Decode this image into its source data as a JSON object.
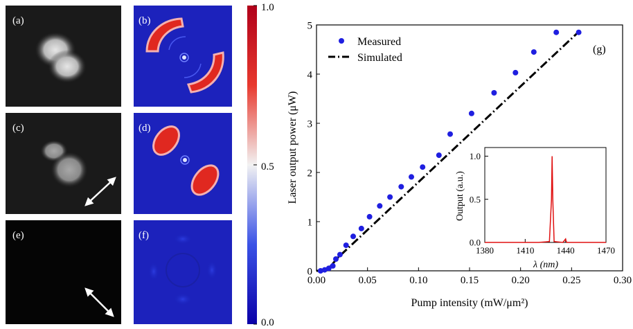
{
  "panels": {
    "a": {
      "label": "(a)"
    },
    "b": {
      "label": "(b)"
    },
    "c": {
      "label": "(c)"
    },
    "d": {
      "label": "(d)"
    },
    "e": {
      "label": "(e)"
    },
    "f": {
      "label": "(f)"
    },
    "g": {
      "label": "(g)"
    }
  },
  "colorbar": {
    "ticks": [
      "1.0",
      "0.5",
      "0.0"
    ],
    "colors": {
      "top": "#b0001a",
      "upper": "#e8392e",
      "mid": "#f2f2f2",
      "lower": "#3a52e6",
      "bottom": "#0a00a8"
    }
  },
  "chart_data": [
    {
      "type": "scatter",
      "title": "",
      "xlabel": "Pump intensity (mW/μm²)",
      "ylabel": "Laser output power (μW)",
      "xlim": [
        0.0,
        0.3
      ],
      "ylim": [
        0,
        5
      ],
      "xticks": [
        "0.00",
        "0.05",
        "0.10",
        "0.15",
        "0.20",
        "0.25",
        "0.30"
      ],
      "yticks": [
        "0",
        "1",
        "2",
        "3",
        "4",
        "5"
      ],
      "legend_position": "top-left",
      "series": [
        {
          "name": "Measured",
          "color": "#1f1fe0",
          "x": [
            0.004,
            0.008,
            0.012,
            0.016,
            0.019,
            0.023,
            0.029,
            0.036,
            0.044,
            0.052,
            0.062,
            0.072,
            0.083,
            0.093,
            0.104,
            0.12,
            0.131,
            0.152,
            0.174,
            0.195,
            0.213,
            0.235,
            0.257
          ],
          "y": [
            0.0,
            0.02,
            0.05,
            0.1,
            0.24,
            0.33,
            0.52,
            0.7,
            0.86,
            1.1,
            1.32,
            1.5,
            1.71,
            1.91,
            2.11,
            2.35,
            2.78,
            3.2,
            3.62,
            4.03,
            4.45,
            4.85,
            4.85
          ]
        },
        {
          "name": "Simulated",
          "color": "#000000",
          "style": "dash-dot",
          "x": [
            0.0,
            0.005,
            0.01,
            0.015,
            0.02,
            0.258
          ],
          "y": [
            0.0,
            0.0,
            0.03,
            0.12,
            0.25,
            4.88
          ]
        }
      ],
      "annotation": "(g)"
    },
    {
      "type": "line",
      "title": "",
      "xlabel": "λ (nm)",
      "ylabel": "Output (a.u.)",
      "xlim": [
        1380,
        1470
      ],
      "ylim": [
        0,
        1.1
      ],
      "xticks": [
        "1380",
        "1410",
        "1440",
        "1470"
      ],
      "yticks": [
        "0.0",
        "0.5",
        "1.0"
      ],
      "series": [
        {
          "color": "#e01010",
          "x": [
            1380,
            1420,
            1428,
            1429.5,
            1430,
            1430.5,
            1431.5,
            1438,
            1440,
            1440.5,
            1441,
            1443,
            1470
          ],
          "y": [
            0.0,
            0.0,
            0.01,
            0.5,
            1.0,
            0.5,
            0.01,
            0.0,
            0.04,
            0.01,
            0.0,
            0.0,
            0.0
          ]
        }
      ]
    }
  ]
}
